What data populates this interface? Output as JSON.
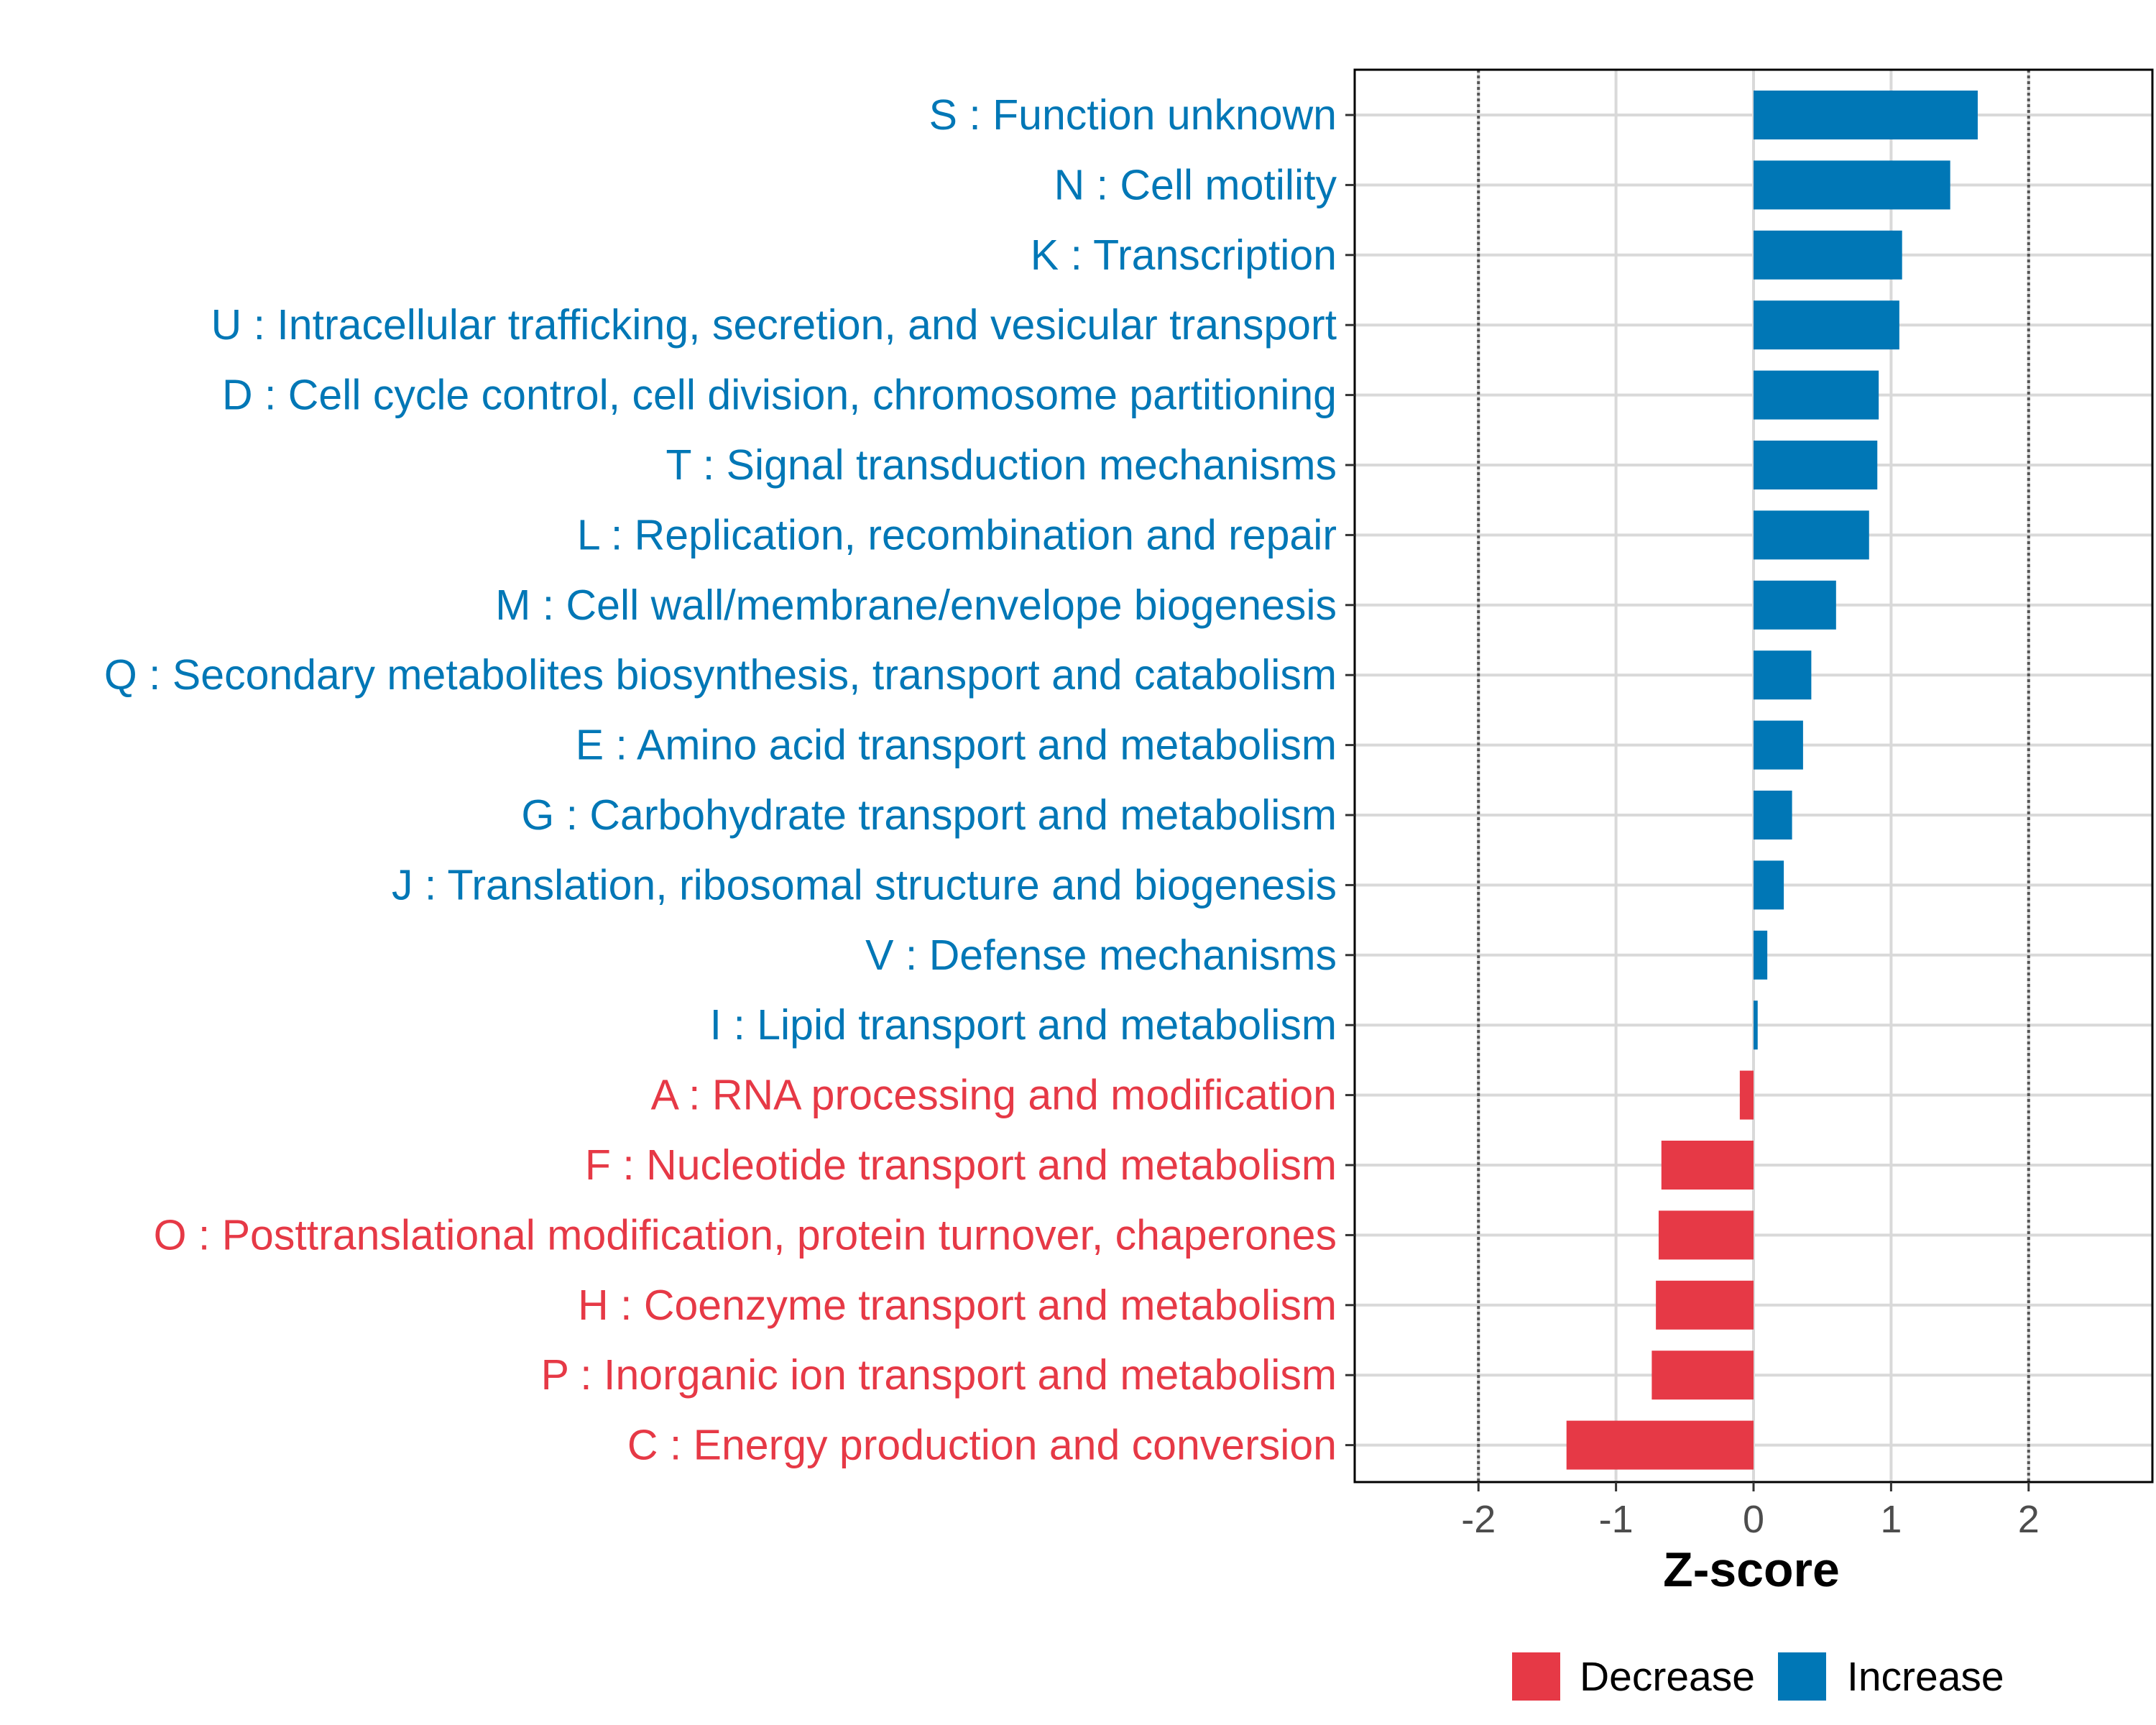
{
  "chart_data": {
    "type": "bar",
    "orientation": "horizontal",
    "xlabel": "Z-score",
    "xlim": [
      -2.9,
      2.9
    ],
    "xticks": [
      -2,
      -1,
      0,
      1,
      2
    ],
    "xtick_labels": [
      "-2",
      "-1",
      "0",
      "1",
      "2"
    ],
    "reference_lines": [
      -2,
      2
    ],
    "grid": true,
    "categories": [
      "S : Function unknown",
      "N : Cell motility",
      "K : Transcription",
      "U : Intracellular trafficking, secretion, and vesicular transport",
      "D : Cell cycle control, cell division, chromosome partitioning",
      "T : Signal transduction mechanisms",
      "L : Replication, recombination and repair",
      "M : Cell wall/membrane/envelope biogenesis",
      "Q : Secondary metabolites biosynthesis, transport and catabolism",
      "E : Amino acid transport and metabolism",
      "G : Carbohydrate transport and metabolism",
      "J : Translation, ribosomal structure and biogenesis",
      "V : Defense mechanisms",
      "I : Lipid transport and metabolism",
      "A : RNA processing and modification",
      "F : Nucleotide transport and metabolism",
      "O : Posttranslational modification, protein turnover, chaperones",
      "H : Coenzyme transport and metabolism",
      "P : Inorganic ion transport and metabolism",
      "C : Energy production and conversion"
    ],
    "values": [
      1.63,
      1.43,
      1.08,
      1.06,
      0.91,
      0.9,
      0.84,
      0.6,
      0.42,
      0.36,
      0.28,
      0.22,
      0.1,
      0.03,
      -0.1,
      -0.67,
      -0.69,
      -0.71,
      -0.74,
      -1.36
    ],
    "groups": [
      "Increase",
      "Increase",
      "Increase",
      "Increase",
      "Increase",
      "Increase",
      "Increase",
      "Increase",
      "Increase",
      "Increase",
      "Increase",
      "Increase",
      "Increase",
      "Increase",
      "Decrease",
      "Decrease",
      "Decrease",
      "Decrease",
      "Decrease",
      "Decrease"
    ],
    "legend": {
      "position": "bottom",
      "entries": [
        {
          "label": "Decrease",
          "color": "#E63946"
        },
        {
          "label": "Increase",
          "color": "#0077B6"
        }
      ]
    }
  },
  "colors": {
    "increase": "#0077B6",
    "decrease": "#E63946",
    "grid": "#D9D9D9",
    "panel_border": "#000000",
    "reference_line": "#555555"
  }
}
